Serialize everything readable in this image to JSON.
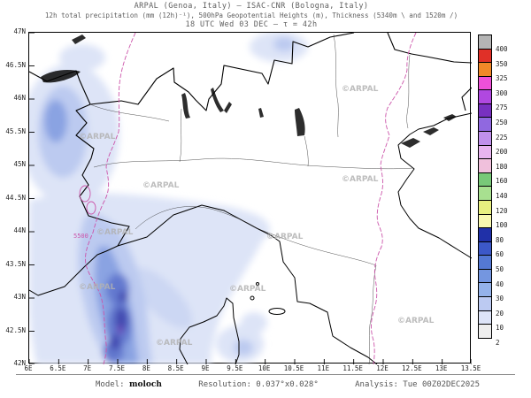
{
  "header": {
    "line1": "ARPAL (Genoa, Italy)  –  ISAC-CNR (Bologna, Italy)",
    "line2": "12h total precipitation (mm (12h)⁻¹), 500hPa Geopotential Heights (m), Thickness (5340m \\ and 1520m /)",
    "line3": "18 UTC Wed 03 DEC  –  τ = 42h"
  },
  "map": {
    "watermark": "©ARPAL",
    "contour_label": "5500",
    "x_axis": {
      "ticks": [
        "6E",
        "6.5E",
        "7E",
        "7.5E",
        "8E",
        "8.5E",
        "9E",
        "9.5E",
        "10E",
        "10.5E",
        "11E",
        "11.5E",
        "12E",
        "12.5E",
        "13E",
        "13.5E"
      ]
    },
    "y_axis": {
      "ticks": [
        "47N",
        "46.5N",
        "46N",
        "45.5N",
        "45N",
        "44.5N",
        "44N",
        "43.5N",
        "43N",
        "42.5N",
        "42N"
      ]
    }
  },
  "colorbar": {
    "units": "mm (12h)⁻¹",
    "labels": [
      "400",
      "350",
      "325",
      "300",
      "275",
      "250",
      "225",
      "200",
      "180",
      "160",
      "140",
      "120",
      "100",
      "80",
      "60",
      "50",
      "40",
      "30",
      "20",
      "10",
      "2"
    ],
    "colors_top_to_bottom": [
      "#b4b4b4",
      "#e03028",
      "#f08828",
      "#ee50d8",
      "#b048e0",
      "#7830c0",
      "#9068e0",
      "#c090ec",
      "#e8b4f0",
      "#f0c0dc",
      "#78c878",
      "#a8e090",
      "#e8f080",
      "#f8f8b0",
      "#2030a8",
      "#3c58c8",
      "#5478d4",
      "#7496e0",
      "#94b2ea",
      "#bccaf2",
      "#dde4f8",
      "#eeeeee"
    ]
  },
  "footer": {
    "model_label": "Model:",
    "model_value": "moloch",
    "resolution": "Resolution: 0.037°x0.028°",
    "analysis": "Analysis: Tue 00Z02DEC2025"
  }
}
